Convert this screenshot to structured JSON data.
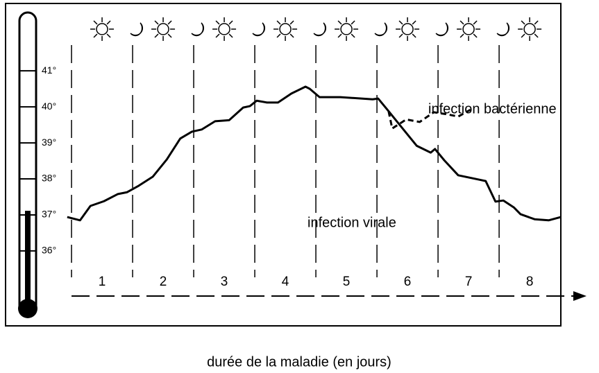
{
  "chart_data": {
    "type": "line",
    "x_label": "durée de la maladie (en jours)",
    "categories": [
      "1",
      "2",
      "3",
      "4",
      "5",
      "6",
      "7",
      "8"
    ],
    "xlim": [
      -1.08,
      8.01
    ],
    "ylim": [
      33.92,
      42.87
    ],
    "yticks": [
      {
        "value": 36,
        "label": "36°"
      },
      {
        "value": 37,
        "label": "37°"
      },
      {
        "value": 38,
        "label": "38°"
      },
      {
        "value": 39,
        "label": "39°"
      },
      {
        "value": 40,
        "label": "40°"
      },
      {
        "value": 41,
        "label": "41°"
      }
    ],
    "series": [
      {
        "name": "infection virale",
        "color": "#000000",
        "dashed": false,
        "x": [
          -0.07,
          0.14,
          0.31,
          0.53,
          0.76,
          0.91,
          1.1,
          1.33,
          1.56,
          1.78,
          1.97,
          2.13,
          2.35,
          2.58,
          2.81,
          2.92,
          3.03,
          3.2,
          3.38,
          3.6,
          3.83,
          3.9,
          4.06,
          4.4,
          4.93,
          5.02,
          5.19,
          5.42,
          5.65,
          5.88,
          5.95,
          6.1,
          6.33,
          6.67,
          6.78,
          6.94,
          7.07,
          7.24,
          7.35,
          7.58,
          7.81,
          8.01
        ],
        "values": [
          36.94,
          36.85,
          37.25,
          37.38,
          37.58,
          37.63,
          37.81,
          38.06,
          38.54,
          39.12,
          39.31,
          39.37,
          39.6,
          39.63,
          39.98,
          40.02,
          40.17,
          40.12,
          40.12,
          40.37,
          40.56,
          40.5,
          40.27,
          40.27,
          40.21,
          40.23,
          39.88,
          39.4,
          38.92,
          38.73,
          38.83,
          38.52,
          38.1,
          37.98,
          37.94,
          37.37,
          37.4,
          37.21,
          37.02,
          36.88,
          36.85,
          36.94
        ]
      },
      {
        "name": "infection bactérienne",
        "color": "#000000",
        "dashed": true,
        "x": [
          5.19,
          5.25,
          5.48,
          5.7,
          5.93,
          6.16,
          6.33,
          6.53
        ],
        "values": [
          39.88,
          39.4,
          39.65,
          39.58,
          39.85,
          39.79,
          39.73,
          39.92
        ]
      }
    ]
  }
}
